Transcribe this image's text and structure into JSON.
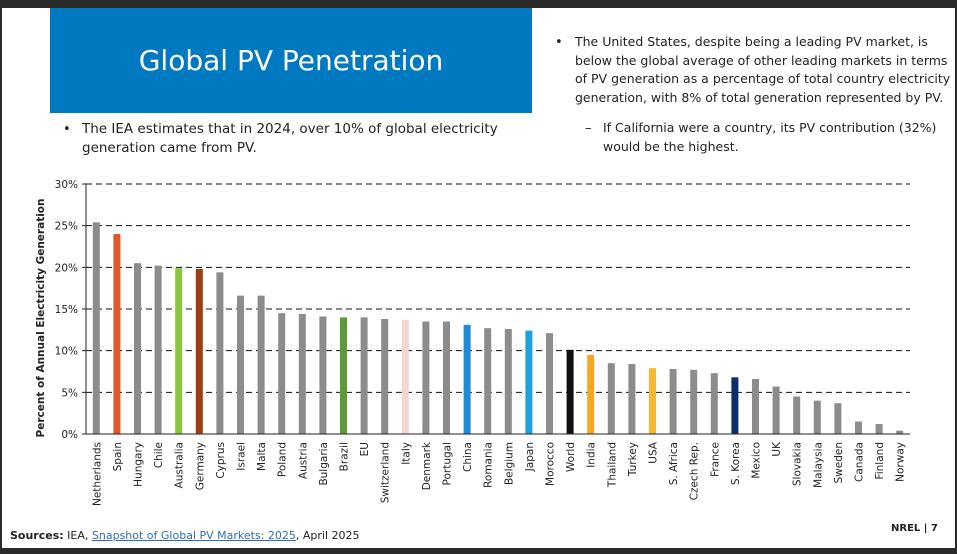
{
  "slide": {
    "title": "Global PV Penetration",
    "bullet_left": "The IEA estimates that in 2024, over 10% of global electricity generation came from PV.",
    "bullet_left_line1": "The IEA estimates that in 2024, over 10% of global electricity",
    "bullet_left_line2": "generation came from PV.",
    "bullet_right_line1": "The United States, despite being a leading PV market, is",
    "bullet_right_line2": "below the global average of other leading markets in terms",
    "bullet_right_line3": "of PV generation as a percentage of total country electricity",
    "bullet_right_line4": "generation, with 8% of total generation represented by PV.",
    "sub_bullet_line1": "If California were a country, its PV contribution (32%)",
    "sub_bullet_line2": "would be the highest.",
    "sources_label": "Sources:",
    "sources_pre": " IEA, ",
    "sources_link": "Snapshot of Global PV Markets: 2025",
    "sources_post": ", April 2025",
    "footer": "NREL  |  7"
  },
  "chart_data": {
    "type": "bar",
    "title": "",
    "xlabel": "",
    "ylabel": "Percent of Annual Electricity Generation",
    "ylim": [
      0,
      30
    ],
    "yticks": [
      0,
      5,
      10,
      15,
      20,
      25,
      30
    ],
    "ytick_labels": [
      "0%",
      "5%",
      "10%",
      "15%",
      "20%",
      "25%",
      "30%"
    ],
    "grid": true,
    "categories": [
      "Netherlands",
      "Spain",
      "Hungary",
      "Chile",
      "Australia",
      "Germany",
      "Cyprus",
      "Israel",
      "Malta",
      "Poland",
      "Austria",
      "Bulgaria",
      "Brazil",
      "EU",
      "Switzerland",
      "Italy",
      "Denmark",
      "Portugal",
      "China",
      "Romania",
      "Belgium",
      "Japan",
      "Morocco",
      "World",
      "India",
      "Thailand",
      "Turkey",
      "USA",
      "S. Africa",
      "Czech Rep.",
      "France",
      "S. Korea",
      "Mexico",
      "UK",
      "Slovakia",
      "Malaysia",
      "Sweden",
      "Canada",
      "Finland",
      "Norway"
    ],
    "values": [
      25.4,
      24.0,
      20.5,
      20.2,
      19.9,
      19.8,
      19.4,
      16.6,
      16.6,
      14.5,
      14.4,
      14.1,
      14.0,
      14.0,
      13.8,
      13.7,
      13.5,
      13.5,
      13.1,
      12.7,
      12.6,
      12.4,
      12.1,
      10.1,
      9.5,
      8.5,
      8.4,
      7.9,
      7.8,
      7.7,
      7.3,
      6.8,
      6.6,
      5.7,
      4.5,
      4.0,
      3.7,
      1.5,
      1.2,
      0.4
    ],
    "colors": [
      "#8c8c8c",
      "#e0572a",
      "#8c8c8c",
      "#8c8c8c",
      "#8bc53f",
      "#9c3f12",
      "#8c8c8c",
      "#8c8c8c",
      "#8c8c8c",
      "#8c8c8c",
      "#8c8c8c",
      "#8c8c8c",
      "#5e9a3a",
      "#8c8c8c",
      "#8c8c8c",
      "#f7d5cf",
      "#8c8c8c",
      "#8c8c8c",
      "#1f8ad6",
      "#8c8c8c",
      "#8c8c8c",
      "#1fa0e0",
      "#8c8c8c",
      "#111111",
      "#f5a623",
      "#8c8c8c",
      "#8c8c8c",
      "#f7b733",
      "#8c8c8c",
      "#8c8c8c",
      "#8c8c8c",
      "#0b2f6b",
      "#8c8c8c",
      "#8c8c8c",
      "#8c8c8c",
      "#8c8c8c",
      "#8c8c8c",
      "#8c8c8c",
      "#8c8c8c",
      "#8c8c8c"
    ]
  }
}
